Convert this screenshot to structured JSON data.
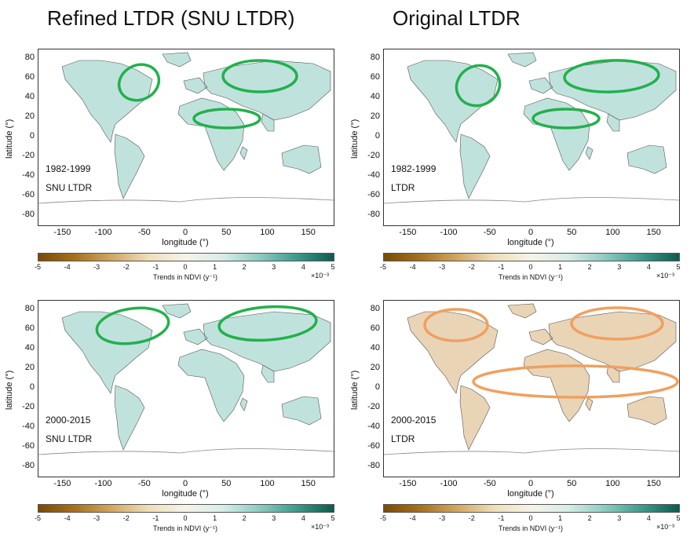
{
  "titles": {
    "left": "Refined LTDR  (SNU LTDR)",
    "right": "Original LTDR"
  },
  "axes": {
    "xlabel": "longitude (°)",
    "ylabel": "latitude (°)",
    "xticks": [
      "-150",
      "-100",
      "-50",
      "0",
      "50",
      "100",
      "150"
    ],
    "yticks": [
      "80",
      "60",
      "40",
      "20",
      "0",
      "-20",
      "-40",
      "-60",
      "-80"
    ],
    "xlim": [
      -180,
      180
    ],
    "ylim": [
      -90,
      90
    ]
  },
  "colorbar": {
    "ticks": [
      "-5",
      "-4",
      "-3",
      "-2",
      "-1",
      "0",
      "1",
      "2",
      "3",
      "4",
      "5"
    ],
    "title": "Trends in NDVI (y⁻¹)",
    "exponent": "×10⁻³",
    "range": [
      -5,
      5
    ],
    "colors": [
      "#7a4a08",
      "#a8711f",
      "#d3a864",
      "#efdfb9",
      "#f7f3e9",
      "#d7ede8",
      "#8ccbc1",
      "#3d9a8c",
      "#0d5b4c"
    ]
  },
  "panels": [
    {
      "period": "1982-1999",
      "source": "SNU LTDR",
      "ellipse_color": "#22b14c",
      "highlighted_regions": [
        "North America",
        "Northern Eurasia",
        "Sahel"
      ]
    },
    {
      "period": "1982-1999",
      "source": "LTDR",
      "ellipse_color": "#22b14c",
      "highlighted_regions": [
        "North America",
        "Northern Eurasia",
        "Sahel"
      ]
    },
    {
      "period": "2000-2015",
      "source": "SNU LTDR",
      "ellipse_color": "#22b14c",
      "highlighted_regions": [
        "Northern North America",
        "Siberia"
      ]
    },
    {
      "period": "2000-2015",
      "source": "LTDR",
      "ellipse_color": "#f0a060",
      "highlighted_regions": [
        "Northern North America",
        "Siberia",
        "Tropical belt"
      ]
    }
  ]
}
